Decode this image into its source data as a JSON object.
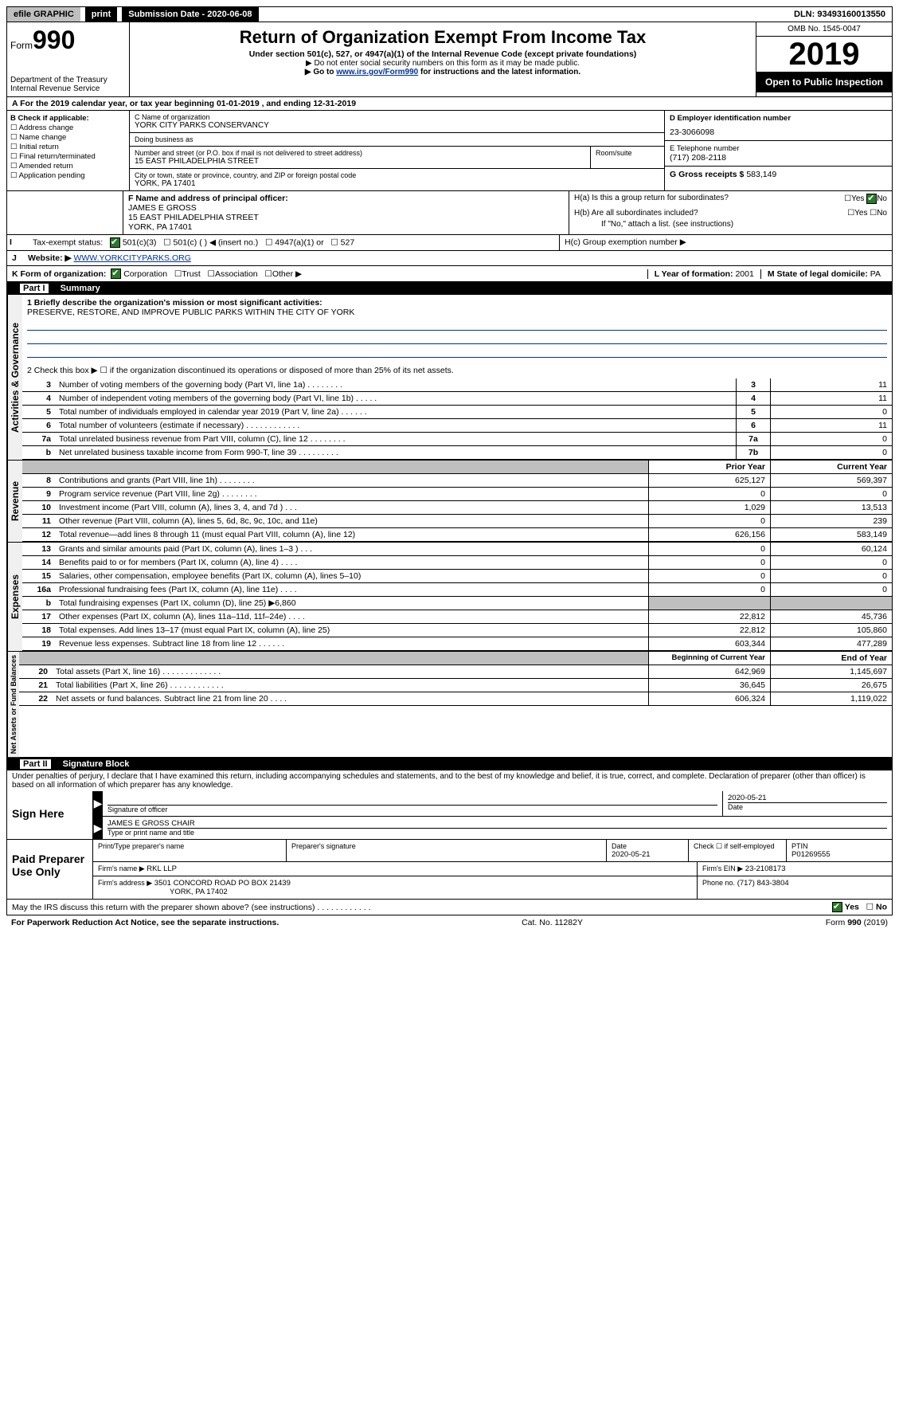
{
  "top_bar": {
    "efile": "efile GRAPHIC",
    "print": "print",
    "submission_label": "Submission Date - 2020-06-08",
    "dln": "DLN: 93493160013550"
  },
  "header": {
    "form_prefix": "Form",
    "form_number": "990",
    "dept1": "Department of the Treasury",
    "dept2": "Internal Revenue Service",
    "title": "Return of Organization Exempt From Income Tax",
    "subtitle": "Under section 501(c), 527, or 4947(a)(1) of the Internal Revenue Code (except private foundations)",
    "note1": "▶ Do not enter social security numbers on this form as it may be made public.",
    "note2_pre": "▶ Go to ",
    "note2_link": "www.irs.gov/Form990",
    "note2_post": " for instructions and the latest information.",
    "omb": "OMB No. 1545-0047",
    "year": "2019",
    "open": "Open to Public Inspection"
  },
  "section_a": "A For the 2019 calendar year, or tax year beginning 01-01-2019    , and ending 12-31-2019",
  "section_b": {
    "label": "B Check if applicable:",
    "items": [
      "Address change",
      "Name change",
      "Initial return",
      "Final return/terminated",
      "Amended return",
      "Application pending"
    ]
  },
  "section_c": {
    "name_label": "C Name of organization",
    "name": "YORK CITY PARKS CONSERVANCY",
    "dba_label": "Doing business as",
    "addr_label": "Number and street (or P.O. box if mail is not delivered to street address)",
    "room_label": "Room/suite",
    "addr": "15 EAST PHILADELPHIA STREET",
    "city_label": "City or town, state or province, country, and ZIP or foreign postal code",
    "city": "YORK, PA  17401"
  },
  "section_d": {
    "label": "D Employer identification number",
    "value": "23-3066098"
  },
  "section_e": {
    "label": "E Telephone number",
    "value": "(717) 208-2118"
  },
  "section_g": {
    "label": "G Gross receipts $",
    "value": "583,149"
  },
  "section_f": {
    "label": "F  Name and address of principal officer:",
    "name": "JAMES E GROSS",
    "addr1": "15 EAST PHILADELPHIA STREET",
    "addr2": "YORK, PA  17401"
  },
  "section_h": {
    "a": "H(a)  Is this a group return for subordinates?",
    "b": "H(b)  Are all subordinates included?",
    "b_note": "If \"No,\" attach a list. (see instructions)",
    "c": "H(c)  Group exemption number ▶"
  },
  "section_i": {
    "label": "I",
    "tax_label": "Tax-exempt status:",
    "opts": [
      "501(c)(3)",
      "501(c) (   ) ◀ (insert no.)",
      "4947(a)(1) or",
      "527"
    ]
  },
  "section_j": {
    "label": "J",
    "website_label": "Website: ▶",
    "website": "WWW.YORKCITYPARKS.ORG"
  },
  "section_k": {
    "label": "K Form of organization:",
    "opts": [
      "Corporation",
      "Trust",
      "Association",
      "Other ▶"
    ]
  },
  "section_l": {
    "label": "L Year of formation:",
    "value": "2001"
  },
  "section_m": {
    "label": "M State of legal domicile:",
    "value": "PA"
  },
  "part1": {
    "header": "Part I",
    "title": "Summary",
    "line1_label": "1  Briefly describe the organization's mission or most significant activities:",
    "line1_value": "PRESERVE, RESTORE, AND IMPROVE PUBLIC PARKS WITHIN THE CITY OF YORK",
    "line2": "2    Check this box ▶ ☐  if the organization discontinued its operations or disposed of more than 25% of its net assets.",
    "rows_governance": [
      {
        "n": "3",
        "t": "Number of voting members of the governing body (Part VI, line 1a)   .    .    .    .    .    .    .    .",
        "b": "3",
        "v": "11"
      },
      {
        "n": "4",
        "t": "Number of independent voting members of the governing body (Part VI, line 1b)   .    .    .    .    .",
        "b": "4",
        "v": "11"
      },
      {
        "n": "5",
        "t": "Total number of individuals employed in calendar year 2019 (Part V, line 2a)   .    .    .    .    .    .",
        "b": "5",
        "v": "0"
      },
      {
        "n": "6",
        "t": "Total number of volunteers (estimate if necessary)   .    .    .    .    .    .    .    .    .    .    .    .",
        "b": "6",
        "v": "11"
      },
      {
        "n": "7a",
        "t": "Total unrelated business revenue from Part VIII, column (C), line 12   .    .    .    .    .    .    .    .",
        "b": "7a",
        "v": "0"
      },
      {
        "n": "b",
        "t": "Net unrelated business taxable income from Form 990-T, line 39   .    .    .    .    .    .    .    .    .",
        "b": "7b",
        "v": "0"
      }
    ],
    "col_headers": {
      "prior": "Prior Year",
      "current": "Current Year"
    },
    "rows_revenue": [
      {
        "n": "8",
        "t": "Contributions and grants (Part VIII, line 1h)   .    .    .    .    .    .    .    .",
        "p": "625,127",
        "c": "569,397"
      },
      {
        "n": "9",
        "t": "Program service revenue (Part VIII, line 2g)   .    .    .    .    .    .    .    .",
        "p": "0",
        "c": "0"
      },
      {
        "n": "10",
        "t": "Investment income (Part VIII, column (A), lines 3, 4, and 7d )   .    .    .",
        "p": "1,029",
        "c": "13,513"
      },
      {
        "n": "11",
        "t": "Other revenue (Part VIII, column (A), lines 5, 6d, 8c, 9c, 10c, and 11e)",
        "p": "0",
        "c": "239"
      },
      {
        "n": "12",
        "t": "Total revenue—add lines 8 through 11 (must equal Part VIII, column (A), line 12)",
        "p": "626,156",
        "c": "583,149"
      }
    ],
    "rows_expenses": [
      {
        "n": "13",
        "t": "Grants and similar amounts paid (Part IX, column (A), lines 1–3 )   .    .    .",
        "p": "0",
        "c": "60,124"
      },
      {
        "n": "14",
        "t": "Benefits paid to or for members (Part IX, column (A), line 4)   .    .    .    .",
        "p": "0",
        "c": "0"
      },
      {
        "n": "15",
        "t": "Salaries, other compensation, employee benefits (Part IX, column (A), lines 5–10)",
        "p": "0",
        "c": "0"
      },
      {
        "n": "16a",
        "t": "Professional fundraising fees (Part IX, column (A), line 11e)   .    .    .    .",
        "p": "0",
        "c": "0"
      },
      {
        "n": "b",
        "t": "Total fundraising expenses (Part IX, column (D), line 25) ▶6,860",
        "p": "",
        "c": ""
      },
      {
        "n": "17",
        "t": "Other expenses (Part IX, column (A), lines 11a–11d, 11f–24e)   .    .    .    .",
        "p": "22,812",
        "c": "45,736"
      },
      {
        "n": "18",
        "t": "Total expenses. Add lines 13–17 (must equal Part IX, column (A), line 25)",
        "p": "22,812",
        "c": "105,860"
      },
      {
        "n": "19",
        "t": "Revenue less expenses. Subtract line 18 from line 12   .    .    .    .    .    .",
        "p": "603,344",
        "c": "477,289"
      }
    ],
    "col_headers2": {
      "begin": "Beginning of Current Year",
      "end": "End of Year"
    },
    "rows_net": [
      {
        "n": "20",
        "t": "Total assets (Part X, line 16)   .    .    .    .    .    .    .    .    .    .    .    .    .",
        "p": "642,969",
        "c": "1,145,697"
      },
      {
        "n": "21",
        "t": "Total liabilities (Part X, line 26)   .    .    .    .    .    .    .    .    .    .    .    .",
        "p": "36,645",
        "c": "26,675"
      },
      {
        "n": "22",
        "t": "Net assets or fund balances. Subtract line 21 from line 20   .    .    .    .",
        "p": "606,324",
        "c": "1,119,022"
      }
    ],
    "vert_labels": {
      "gov": "Activities & Governance",
      "rev": "Revenue",
      "exp": "Expenses",
      "net": "Net Assets or Fund Balances"
    }
  },
  "part2": {
    "header": "Part II",
    "title": "Signature Block",
    "perjury": "Under penalties of perjury, I declare that I have examined this return, including accompanying schedules and statements, and to the best of my knowledge and belief, it is true, correct, and complete. Declaration of preparer (other than officer) is based on all information of which preparer has any knowledge.",
    "sign_here": "Sign Here",
    "sig_officer": "Signature of officer",
    "sig_date": "2020-05-21",
    "date_label": "Date",
    "officer_name": "JAMES E GROSS CHAIR",
    "type_label": "Type or print name and title",
    "paid": "Paid Preparer Use Only",
    "prep_name_label": "Print/Type preparer's name",
    "prep_sig_label": "Preparer's signature",
    "prep_date_label": "Date",
    "prep_date": "2020-05-21",
    "check_label": "Check ☐ if self-employed",
    "ptin_label": "PTIN",
    "ptin": "P01269555",
    "firm_name_label": "Firm's name    ▶",
    "firm_name": "RKL LLP",
    "firm_ein_label": "Firm's EIN ▶",
    "firm_ein": "23-2108173",
    "firm_addr_label": "Firm's address ▶",
    "firm_addr1": "3501 CONCORD ROAD PO BOX 21439",
    "firm_addr2": "YORK, PA  17402",
    "phone_label": "Phone no.",
    "phone": "(717) 843-3804",
    "discuss": "May the IRS discuss this return with the preparer shown above? (see instructions)    .    .    .    .    .    .    .    .    .    .    .    .",
    "yes": "Yes",
    "no": "No"
  },
  "footer": {
    "paperwork": "For Paperwork Reduction Act Notice, see the separate instructions.",
    "cat": "Cat. No. 11282Y",
    "form": "Form 990 (2019)"
  }
}
